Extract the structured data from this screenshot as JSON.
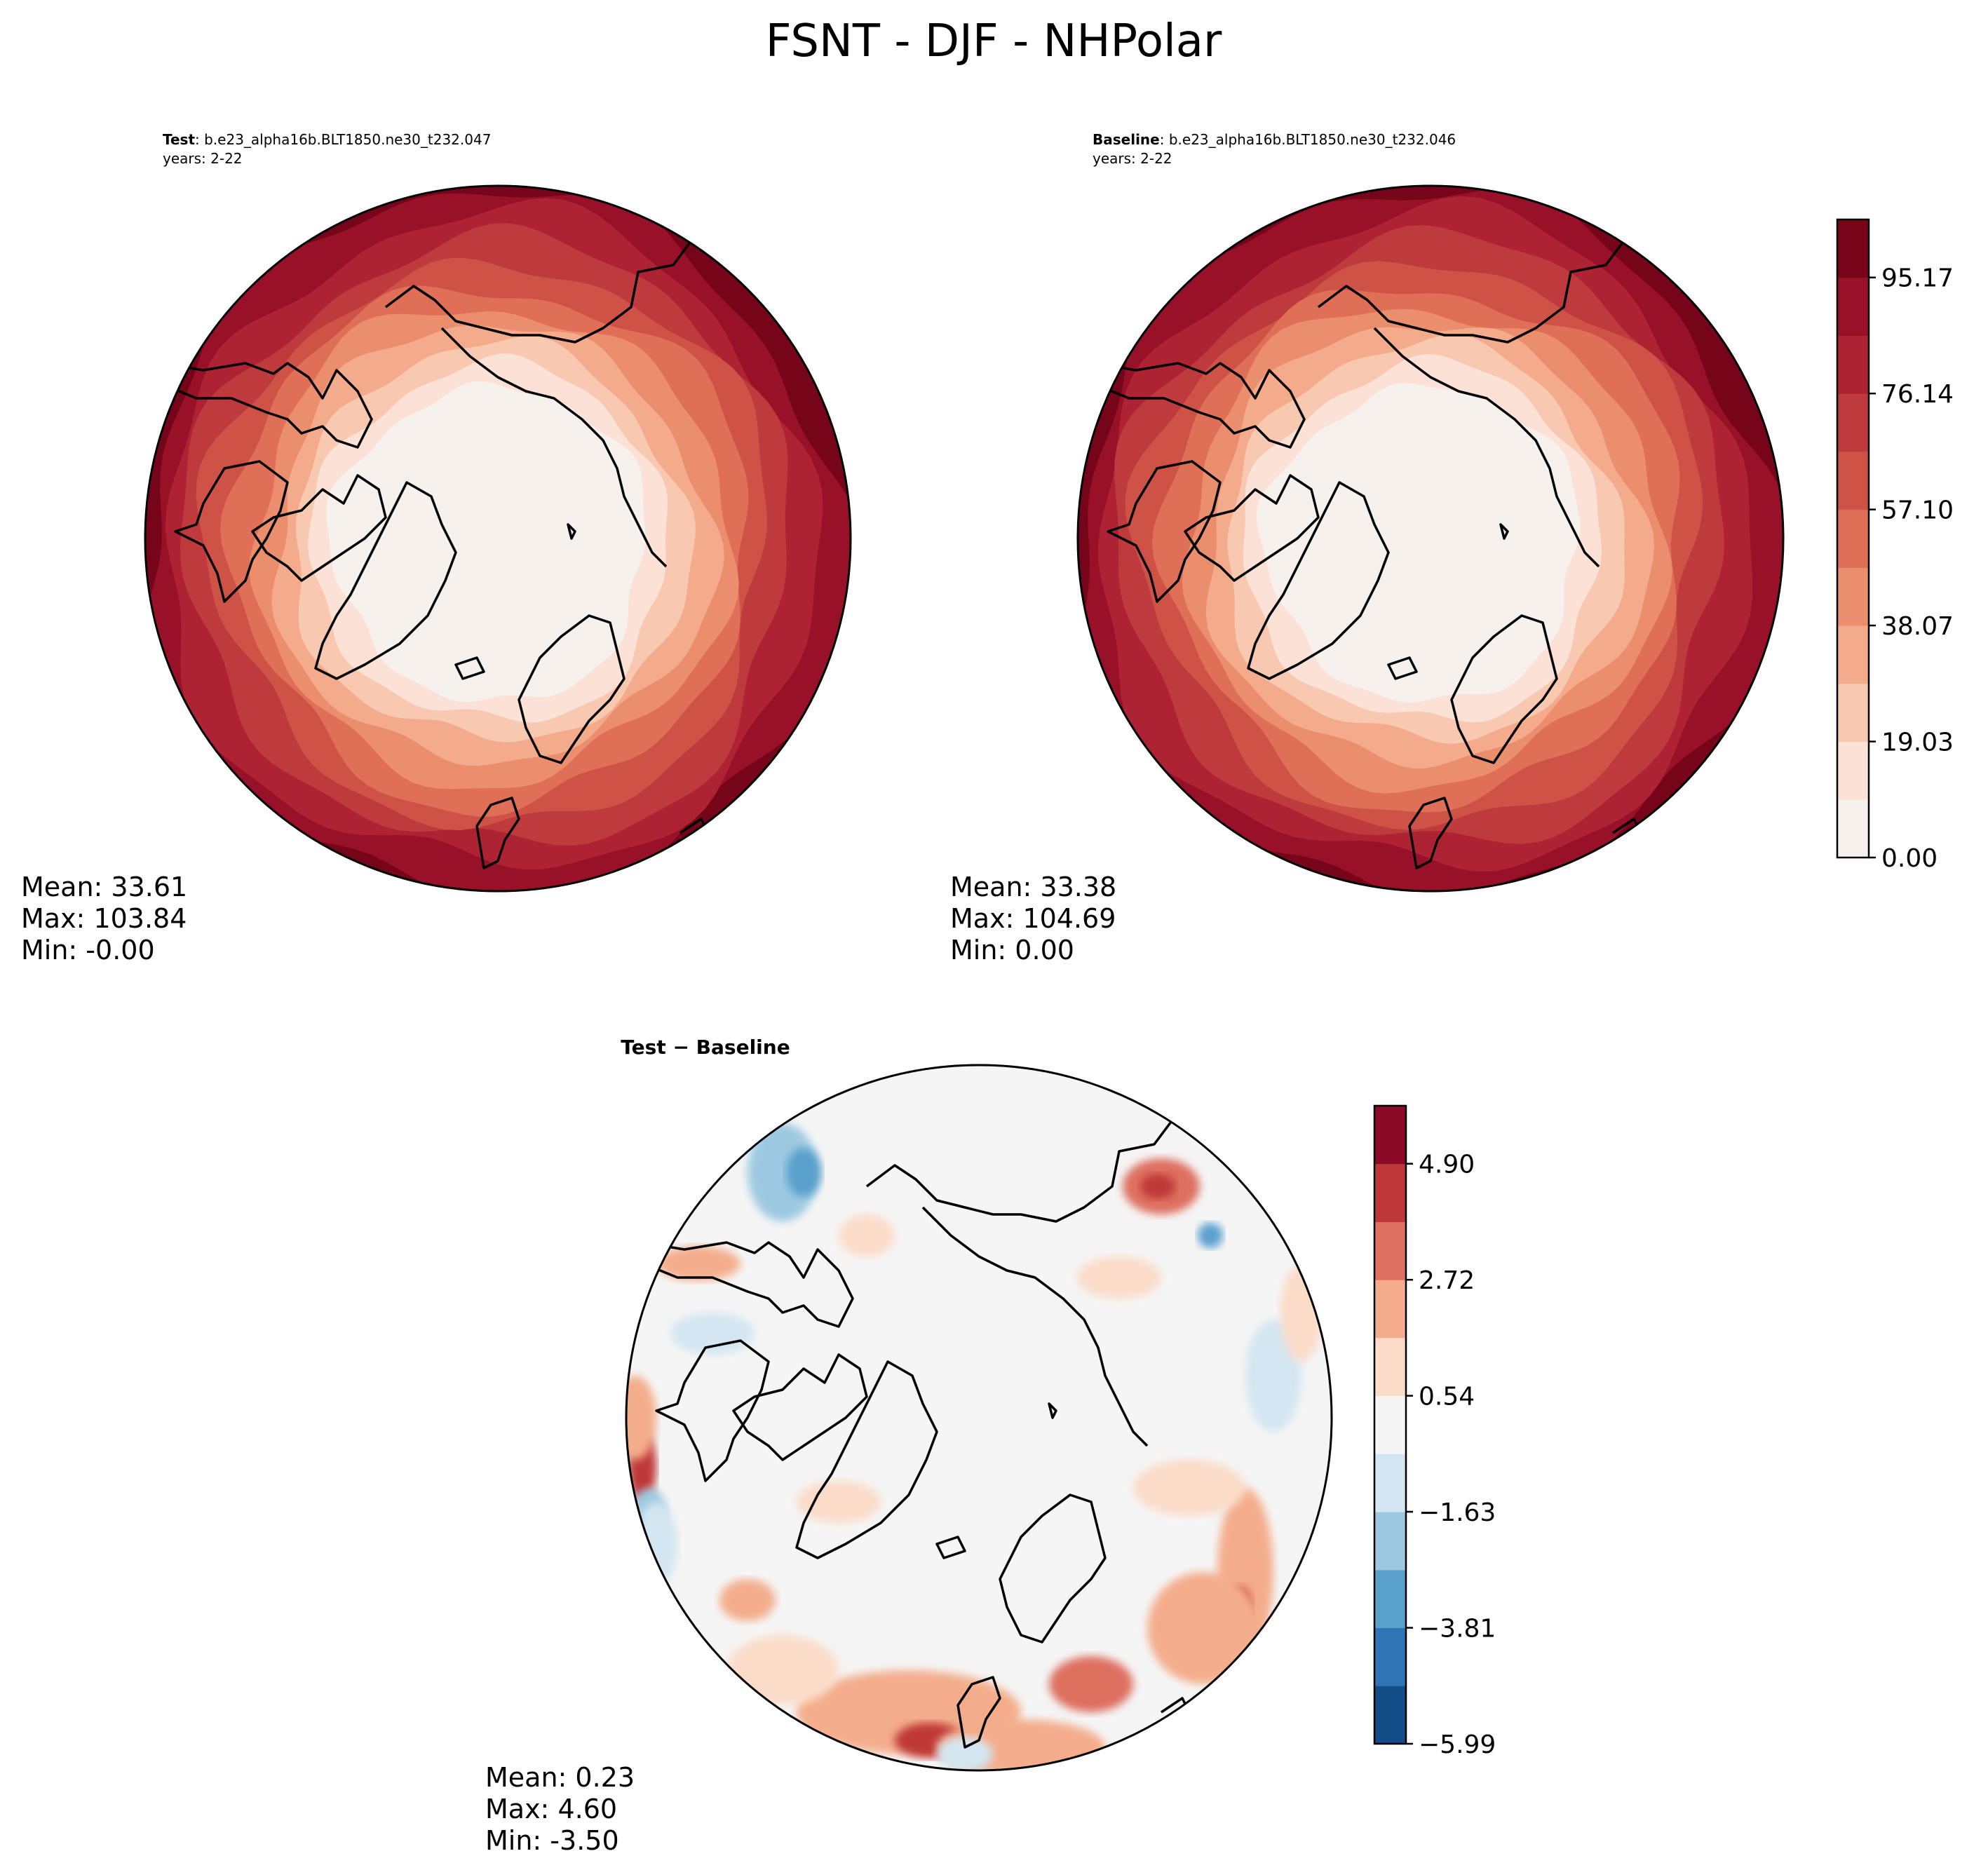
{
  "figure": {
    "title": "FSNT - DJF - NHPolar"
  },
  "chart_data": [
    {
      "type": "heatmap",
      "projection": "north-polar-stereographic",
      "panel": "test",
      "label_bold": "Test",
      "label_case": ": b.e23_alpha16b.BLT1850.ne30_t232.047",
      "label_years": "years: 2-22",
      "stats": {
        "mean": "Mean: 33.61",
        "max": "Max: 103.84",
        "min": "Min: -0.00"
      },
      "field_description": "Net solar flux at top of model: near 0 over the polar interior, increasing radially to about 95-104 at the domain edge",
      "levels_range": [
        0.0,
        104.69
      ]
    },
    {
      "type": "heatmap",
      "projection": "north-polar-stereographic",
      "panel": "baseline",
      "label_bold": "Baseline",
      "label_case": ": b.e23_alpha16b.BLT1850.ne30_t232.046",
      "label_years": "years: 2-22",
      "stats": {
        "mean": "Mean: 33.38",
        "max": "Max: 104.69",
        "min": "Min:  0.00"
      },
      "colorbar": {
        "ticks": [
          "0.00",
          "19.03",
          "38.07",
          "57.10",
          "76.14",
          "95.17"
        ],
        "n_levels": 11,
        "colors": [
          "#f7f1ee",
          "#fbe1d6",
          "#f9c8b0",
          "#f4ab8c",
          "#eb8e6d",
          "#df6f57",
          "#cf5247",
          "#bf3a3c",
          "#ae2333",
          "#981128",
          "#770519"
        ]
      }
    },
    {
      "type": "heatmap",
      "projection": "north-polar-stereographic",
      "panel": "difference",
      "label_bold": "Test − Baseline",
      "stats": {
        "mean": "Mean:  0.23",
        "max": "Max:  4.60",
        "min": "Min: -3.50"
      },
      "colorbar": {
        "ticks": [
          "−5.99",
          "−3.81",
          "−1.63",
          "0.54",
          "2.72",
          "4.90"
        ],
        "n_levels": 11,
        "colors": [
          "#134c87",
          "#2f74b3",
          "#5aa0cd",
          "#9cc9e1",
          "#d3e6f1",
          "#f5f5f5",
          "#fbdcc9",
          "#f4ad8c",
          "#de7061",
          "#bf3839",
          "#8b0a25"
        ]
      }
    }
  ]
}
